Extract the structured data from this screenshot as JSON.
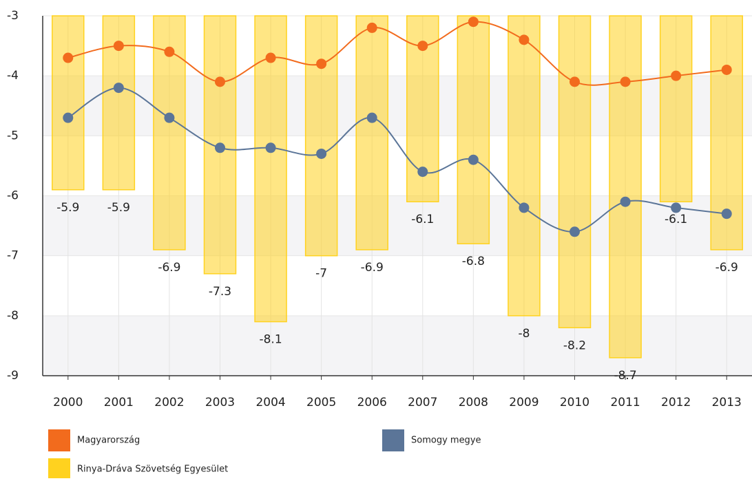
{
  "chart_data": {
    "type": "bar-line",
    "categories": [
      "2000",
      "2001",
      "2002",
      "2003",
      "2004",
      "2005",
      "2006",
      "2007",
      "2008",
      "2009",
      "2010",
      "2011",
      "2012",
      "2013"
    ],
    "series": [
      {
        "name": "Magyarország",
        "type": "line",
        "color": "#f26b1d",
        "values": [
          -3.7,
          -3.5,
          -3.6,
          -4.1,
          -3.7,
          -3.8,
          -3.2,
          -3.5,
          -3.1,
          -3.4,
          -4.1,
          -4.1,
          -4.0,
          -3.9
        ]
      },
      {
        "name": "Somogy megye",
        "type": "line",
        "color": "#5b7598",
        "values": [
          -4.7,
          -4.2,
          -4.7,
          -5.2,
          -5.2,
          -5.3,
          -4.7,
          -5.6,
          -5.4,
          -6.2,
          -6.6,
          -6.1,
          -6.2,
          -6.3
        ]
      },
      {
        "name": "Rinya-Dráva Szövetség Egyesület",
        "type": "bar",
        "color": "#ffd21f",
        "values": [
          -5.9,
          -5.9,
          -6.9,
          -7.3,
          -8.1,
          -7,
          -6.9,
          -6.1,
          -6.8,
          -8,
          -8.2,
          -8.7,
          -6.1,
          -6.9
        ]
      }
    ],
    "ylim": [
      -9,
      -3
    ],
    "yticks": [
      -9,
      -8,
      -7,
      -6,
      -5,
      -4,
      -3
    ],
    "grid": true
  }
}
